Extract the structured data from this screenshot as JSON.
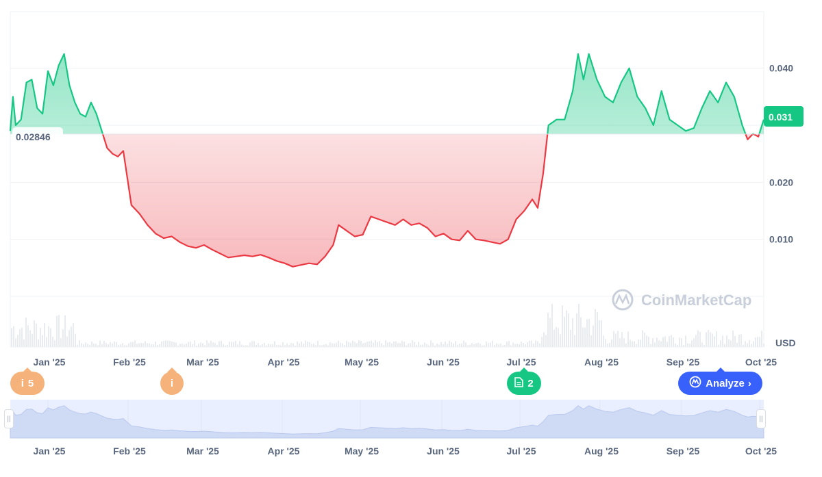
{
  "chart_data": {
    "type": "area",
    "y_axis": {
      "ticks": [
        0.01,
        0.02,
        0.04
      ],
      "tick_labels": [
        "0.010",
        "0.020",
        "0.040"
      ],
      "unit": "USD",
      "ylim": [
        0.0,
        0.05
      ]
    },
    "x_axis": {
      "tick_labels": [
        "Jan '25",
        "Feb '25",
        "Mar '25",
        "Apr '25",
        "May '25",
        "Jun '25",
        "Jul '25",
        "Aug '25",
        "Sep '25",
        "Oct '25"
      ]
    },
    "baseline": 0.02846,
    "baseline_label": "0.02846",
    "current_price": 0.031,
    "current_label": "0.031",
    "colors": {
      "above": "#16c784",
      "below": "#ea3943",
      "above_fill": "#16c784",
      "below_fill": "#ea3943"
    },
    "series": [
      {
        "x": "2024-12-26",
        "y": 0.029
      },
      {
        "x": "2024-12-27",
        "y": 0.035
      },
      {
        "x": "2024-12-28",
        "y": 0.03
      },
      {
        "x": "2024-12-30",
        "y": 0.031
      },
      {
        "x": "2025-01-01",
        "y": 0.0375
      },
      {
        "x": "2025-01-03",
        "y": 0.038
      },
      {
        "x": "2025-01-05",
        "y": 0.033
      },
      {
        "x": "2025-01-07",
        "y": 0.032
      },
      {
        "x": "2025-01-09",
        "y": 0.0395
      },
      {
        "x": "2025-01-11",
        "y": 0.037
      },
      {
        "x": "2025-01-13",
        "y": 0.0405
      },
      {
        "x": "2025-01-15",
        "y": 0.0425
      },
      {
        "x": "2025-01-17",
        "y": 0.037
      },
      {
        "x": "2025-01-19",
        "y": 0.034
      },
      {
        "x": "2025-01-21",
        "y": 0.032
      },
      {
        "x": "2025-01-23",
        "y": 0.0315
      },
      {
        "x": "2025-01-25",
        "y": 0.034
      },
      {
        "x": "2025-01-27",
        "y": 0.032
      },
      {
        "x": "2025-01-29",
        "y": 0.029
      },
      {
        "x": "2025-01-31",
        "y": 0.026
      },
      {
        "x": "2025-02-02",
        "y": 0.025
      },
      {
        "x": "2025-02-04",
        "y": 0.0245
      },
      {
        "x": "2025-02-06",
        "y": 0.0255
      },
      {
        "x": "2025-02-09",
        "y": 0.016
      },
      {
        "x": "2025-02-12",
        "y": 0.0145
      },
      {
        "x": "2025-02-15",
        "y": 0.0125
      },
      {
        "x": "2025-02-18",
        "y": 0.011
      },
      {
        "x": "2025-02-21",
        "y": 0.0102
      },
      {
        "x": "2025-02-24",
        "y": 0.0105
      },
      {
        "x": "2025-02-27",
        "y": 0.0095
      },
      {
        "x": "2025-03-02",
        "y": 0.0088
      },
      {
        "x": "2025-03-05",
        "y": 0.0085
      },
      {
        "x": "2025-03-08",
        "y": 0.009
      },
      {
        "x": "2025-03-11",
        "y": 0.0082
      },
      {
        "x": "2025-03-14",
        "y": 0.0075
      },
      {
        "x": "2025-03-17",
        "y": 0.0068
      },
      {
        "x": "2025-03-20",
        "y": 0.007
      },
      {
        "x": "2025-03-23",
        "y": 0.0072
      },
      {
        "x": "2025-03-26",
        "y": 0.007
      },
      {
        "x": "2025-03-29",
        "y": 0.0073
      },
      {
        "x": "2025-04-01",
        "y": 0.0068
      },
      {
        "x": "2025-04-04",
        "y": 0.0062
      },
      {
        "x": "2025-04-07",
        "y": 0.0058
      },
      {
        "x": "2025-04-10",
        "y": 0.0052
      },
      {
        "x": "2025-04-13",
        "y": 0.0055
      },
      {
        "x": "2025-04-16",
        "y": 0.0058
      },
      {
        "x": "2025-04-19",
        "y": 0.0056
      },
      {
        "x": "2025-04-22",
        "y": 0.007
      },
      {
        "x": "2025-04-25",
        "y": 0.009
      },
      {
        "x": "2025-04-27",
        "y": 0.0125
      },
      {
        "x": "2025-04-30",
        "y": 0.0115
      },
      {
        "x": "2025-05-03",
        "y": 0.0105
      },
      {
        "x": "2025-05-06",
        "y": 0.0108
      },
      {
        "x": "2025-05-09",
        "y": 0.014
      },
      {
        "x": "2025-05-12",
        "y": 0.0135
      },
      {
        "x": "2025-05-15",
        "y": 0.013
      },
      {
        "x": "2025-05-18",
        "y": 0.0125
      },
      {
        "x": "2025-05-21",
        "y": 0.0135
      },
      {
        "x": "2025-05-24",
        "y": 0.0125
      },
      {
        "x": "2025-05-27",
        "y": 0.0128
      },
      {
        "x": "2025-05-30",
        "y": 0.012
      },
      {
        "x": "2025-06-02",
        "y": 0.0105
      },
      {
        "x": "2025-06-05",
        "y": 0.011
      },
      {
        "x": "2025-06-08",
        "y": 0.01
      },
      {
        "x": "2025-06-11",
        "y": 0.0098
      },
      {
        "x": "2025-06-14",
        "y": 0.0115
      },
      {
        "x": "2025-06-17",
        "y": 0.01
      },
      {
        "x": "2025-06-20",
        "y": 0.0098
      },
      {
        "x": "2025-06-23",
        "y": 0.0095
      },
      {
        "x": "2025-06-26",
        "y": 0.0092
      },
      {
        "x": "2025-06-29",
        "y": 0.01
      },
      {
        "x": "2025-07-02",
        "y": 0.0135
      },
      {
        "x": "2025-07-05",
        "y": 0.015
      },
      {
        "x": "2025-07-08",
        "y": 0.017
      },
      {
        "x": "2025-07-10",
        "y": 0.0155
      },
      {
        "x": "2025-07-12",
        "y": 0.0215
      },
      {
        "x": "2025-07-14",
        "y": 0.03
      },
      {
        "x": "2025-07-17",
        "y": 0.031
      },
      {
        "x": "2025-07-20",
        "y": 0.031
      },
      {
        "x": "2025-07-23",
        "y": 0.036
      },
      {
        "x": "2025-07-25",
        "y": 0.0425
      },
      {
        "x": "2025-07-27",
        "y": 0.038
      },
      {
        "x": "2025-07-29",
        "y": 0.0425
      },
      {
        "x": "2025-08-01",
        "y": 0.038
      },
      {
        "x": "2025-08-04",
        "y": 0.035
      },
      {
        "x": "2025-08-07",
        "y": 0.034
      },
      {
        "x": "2025-08-10",
        "y": 0.0375
      },
      {
        "x": "2025-08-13",
        "y": 0.04
      },
      {
        "x": "2025-08-16",
        "y": 0.035
      },
      {
        "x": "2025-08-19",
        "y": 0.033
      },
      {
        "x": "2025-08-22",
        "y": 0.03
      },
      {
        "x": "2025-08-25",
        "y": 0.036
      },
      {
        "x": "2025-08-28",
        "y": 0.031
      },
      {
        "x": "2025-08-31",
        "y": 0.03
      },
      {
        "x": "2025-09-03",
        "y": 0.029
      },
      {
        "x": "2025-09-06",
        "y": 0.0295
      },
      {
        "x": "2025-09-09",
        "y": 0.033
      },
      {
        "x": "2025-09-12",
        "y": 0.036
      },
      {
        "x": "2025-09-15",
        "y": 0.034
      },
      {
        "x": "2025-09-18",
        "y": 0.0375
      },
      {
        "x": "2025-09-21",
        "y": 0.035
      },
      {
        "x": "2025-09-24",
        "y": 0.03
      },
      {
        "x": "2025-09-26",
        "y": 0.0275
      },
      {
        "x": "2025-09-28",
        "y": 0.0285
      },
      {
        "x": "2025-09-30",
        "y": 0.028
      },
      {
        "x": "2025-10-02",
        "y": 0.031
      }
    ]
  },
  "watermark": "CoinMarketCap",
  "events": [
    {
      "icon": "info-icon",
      "label": "5"
    },
    {
      "icon": "info-icon",
      "label": ""
    },
    {
      "icon": "document-icon",
      "label": "2"
    }
  ],
  "analyze_button": {
    "label": "Analyze"
  }
}
